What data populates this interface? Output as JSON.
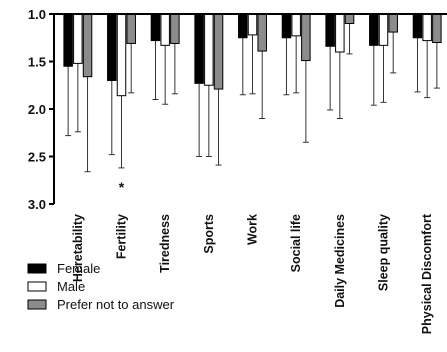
{
  "chart_data": {
    "type": "bar",
    "title": "",
    "xlabel": "",
    "ylabel": "",
    "ylim": [
      1.0,
      3.0
    ],
    "y_inverted": true,
    "yticks": [
      "1.0",
      "1.5",
      "2.0",
      "2.5",
      "3.0"
    ],
    "ytick_values": [
      1.0,
      1.5,
      2.0,
      2.5,
      3.0
    ],
    "error_bars": "one-sided (downward)",
    "categories": [
      "Heretability",
      "Fertility",
      "Tiredness",
      "Sports",
      "Work",
      "Social life",
      "Daily Medicines",
      "Sleep quality",
      "Physical Discomfort"
    ],
    "series": [
      {
        "name": "Female",
        "color": "#000000",
        "values": [
          1.55,
          1.7,
          1.28,
          1.73,
          1.25,
          1.25,
          1.34,
          1.33,
          1.25
        ],
        "errors": [
          0.73,
          0.78,
          0.62,
          0.77,
          0.6,
          0.6,
          0.67,
          0.63,
          0.57
        ]
      },
      {
        "name": "Male",
        "color": "#ffffff",
        "values": [
          1.52,
          1.86,
          1.33,
          1.75,
          1.22,
          1.23,
          1.4,
          1.33,
          1.28
        ],
        "errors": [
          0.72,
          0.76,
          0.62,
          0.75,
          0.62,
          0.6,
          0.7,
          0.6,
          0.6
        ]
      },
      {
        "name": "Prefer not to answer",
        "color": "#8c8c8c",
        "values": [
          1.66,
          1.31,
          1.31,
          1.79,
          1.39,
          1.49,
          1.1,
          1.19,
          1.3
        ],
        "errors": [
          1.0,
          0.52,
          0.53,
          0.8,
          0.71,
          0.86,
          0.32,
          0.43,
          0.48
        ]
      }
    ],
    "annotations": [
      {
        "category": "Fertility",
        "text": "*"
      }
    ],
    "legend": {
      "placement": "bottom-left"
    }
  }
}
